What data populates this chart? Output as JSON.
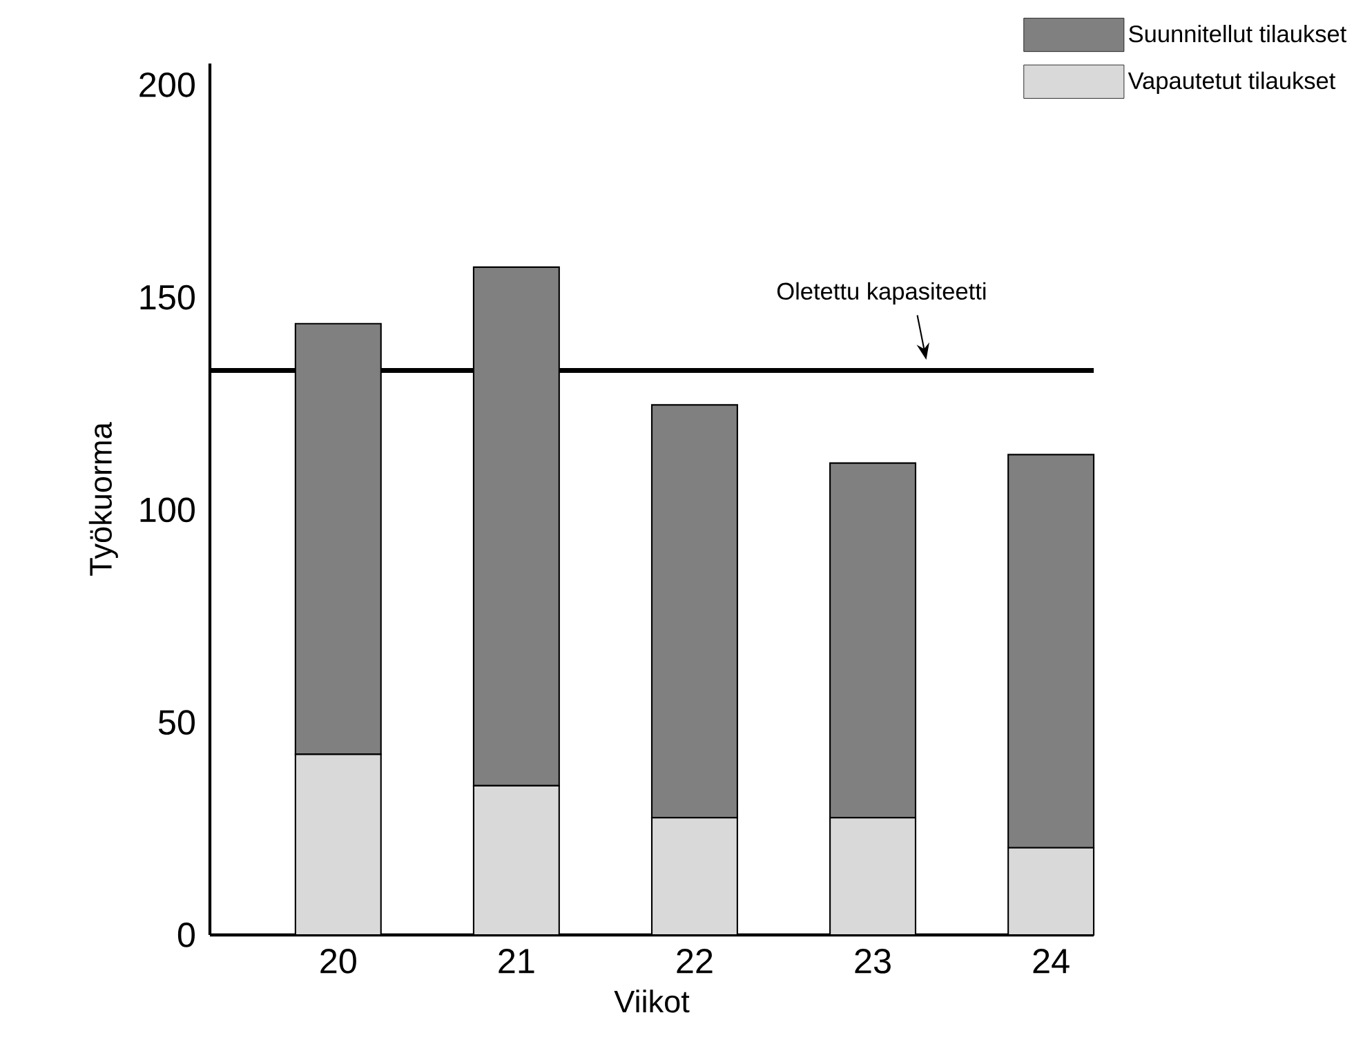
{
  "chart_data": {
    "type": "bar",
    "stacked": true,
    "xlabel": "Viikot",
    "ylabel": "Työkuorma",
    "categories": [
      "20",
      "21",
      "22",
      "23",
      "24"
    ],
    "series": [
      {
        "name": "Vapautetut tilaukset",
        "color": "#d9d9d9",
        "values": [
          42.5,
          35.1,
          27.6,
          27.6,
          20.5
        ]
      },
      {
        "name": "Suunnitellut tilaukset",
        "color": "#808080",
        "values": [
          101.3,
          122.0,
          97.1,
          83.4,
          92.5
        ]
      }
    ],
    "ylim": [
      0,
      205
    ],
    "yticks": [
      0,
      50,
      100,
      150,
      200
    ],
    "ref_lines": [
      {
        "axis": "y",
        "value": 132.8,
        "label": "Oletettu kapasiteetti",
        "color": "#000000"
      }
    ],
    "legend": "top right",
    "grid": false
  }
}
